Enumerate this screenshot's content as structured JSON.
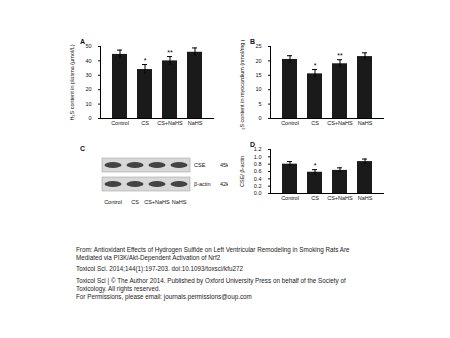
{
  "chart_data": [
    {
      "type": "bar",
      "title": "A",
      "y_label": "H₂S content in plasma (μmol/L)",
      "categories": [
        "Control",
        "CS",
        "CS+NaHS",
        "NaHS"
      ],
      "values": [
        44.5,
        34,
        40,
        46
      ],
      "errors": [
        3,
        3.5,
        3,
        3
      ],
      "significance": [
        null,
        "*",
        "**",
        null
      ],
      "color": "#1a1a1a",
      "ylim": [
        0,
        50
      ],
      "yticks": [
        0,
        10,
        20,
        30,
        40,
        50
      ]
    },
    {
      "type": "bar",
      "title": "B",
      "y_label": "H₂S content in myocardium (nmol/mg pro)",
      "categories": [
        "Control",
        "CS",
        "CS+NaHS",
        "NaHS"
      ],
      "values": [
        20.5,
        15.5,
        19,
        21.5
      ],
      "errors": [
        1.3,
        1.5,
        1.4,
        1.3
      ],
      "significance": [
        null,
        "*",
        "**",
        null
      ],
      "color": "#1a1a1a",
      "ylim": [
        0,
        25
      ],
      "yticks": [
        0,
        5,
        10,
        15,
        20,
        25
      ]
    },
    {
      "type": "bar",
      "title": "D",
      "y_label": "CSE/ β-actin",
      "categories": [
        "Control",
        "CS",
        "CS+NaHS",
        "NaHS"
      ],
      "values": [
        0.8,
        0.58,
        0.63,
        0.87
      ],
      "errors": [
        0.07,
        0.07,
        0.07,
        0.07
      ],
      "significance": [
        null,
        "*",
        null,
        null
      ],
      "color": "#1a1a1a",
      "ylim": [
        0,
        1.2
      ],
      "yticks": [
        0,
        0.2,
        0.4,
        0.6,
        0.8,
        1,
        1.2
      ]
    }
  ],
  "blot": {
    "title": "C",
    "bands": [
      {
        "name": "CSE",
        "size": "45kD"
      },
      {
        "name": "β-actin",
        "size": "42kD"
      }
    ],
    "lanes": [
      "Control",
      "CS",
      "CS+NaHS",
      "NaHS"
    ]
  },
  "caption": {
    "source": "From: Antioxidant Effects of Hydrogen Sulfide on Left Ventricular Remodeling in Smoking Rats Are Mediated via PI3K/Akt-Dependent Activation of Nrf2",
    "citation": "Toxicol Sci. 2014;144(1):197-203. doi:10.1093/toxsci/kfu272",
    "copyright": "Toxicol Sci | © The Author 2014. Published by Oxford University Press on behalf of the Society of Toxicology. All rights reserved.",
    "permissions": "For Permissions, please email: journals.permissions@oup.com"
  }
}
